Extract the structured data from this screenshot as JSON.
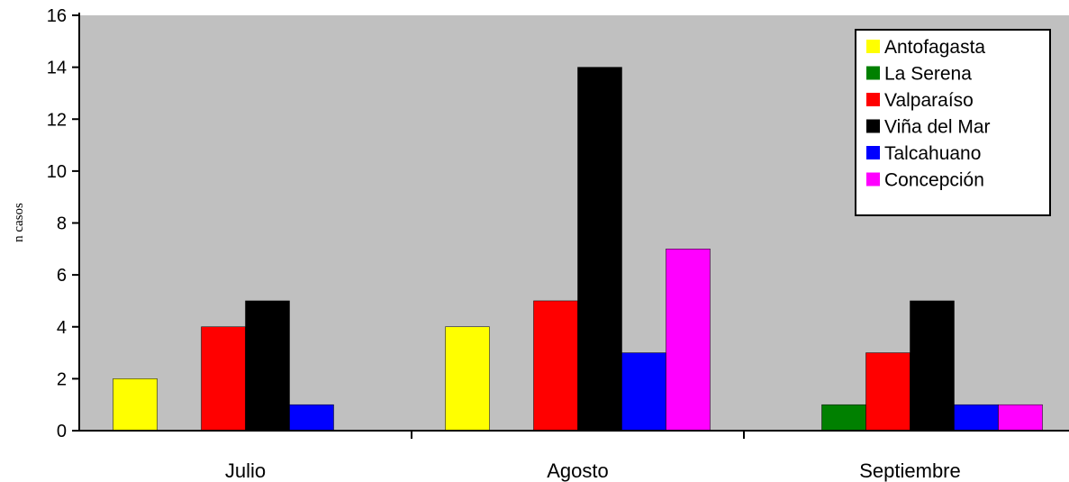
{
  "chart_data": {
    "type": "bar",
    "title": "",
    "xlabel": "",
    "ylabel": "n casos",
    "ylim": [
      0,
      16
    ],
    "yticks": [
      0,
      2,
      4,
      6,
      8,
      10,
      12,
      14,
      16
    ],
    "grid": false,
    "legend_position": "top-right",
    "plot_background": "#c0c0c0",
    "categories": [
      "Julio",
      "Agosto",
      "Septiembre"
    ],
    "series": [
      {
        "name": "Antofagasta",
        "color": "#ffff00",
        "values": [
          2,
          4,
          0
        ]
      },
      {
        "name": "La Serena",
        "color": "#008000",
        "values": [
          0,
          0,
          1
        ]
      },
      {
        "name": "Valparaíso",
        "color": "#ff0000",
        "values": [
          4,
          5,
          3
        ]
      },
      {
        "name": "Viña del Mar",
        "color": "#000000",
        "values": [
          5,
          14,
          5
        ]
      },
      {
        "name": "Talcahuano",
        "color": "#0000ff",
        "values": [
          1,
          3,
          1
        ]
      },
      {
        "name": "Concepción",
        "color": "#ff00ff",
        "values": [
          0,
          7,
          1
        ]
      }
    ]
  }
}
